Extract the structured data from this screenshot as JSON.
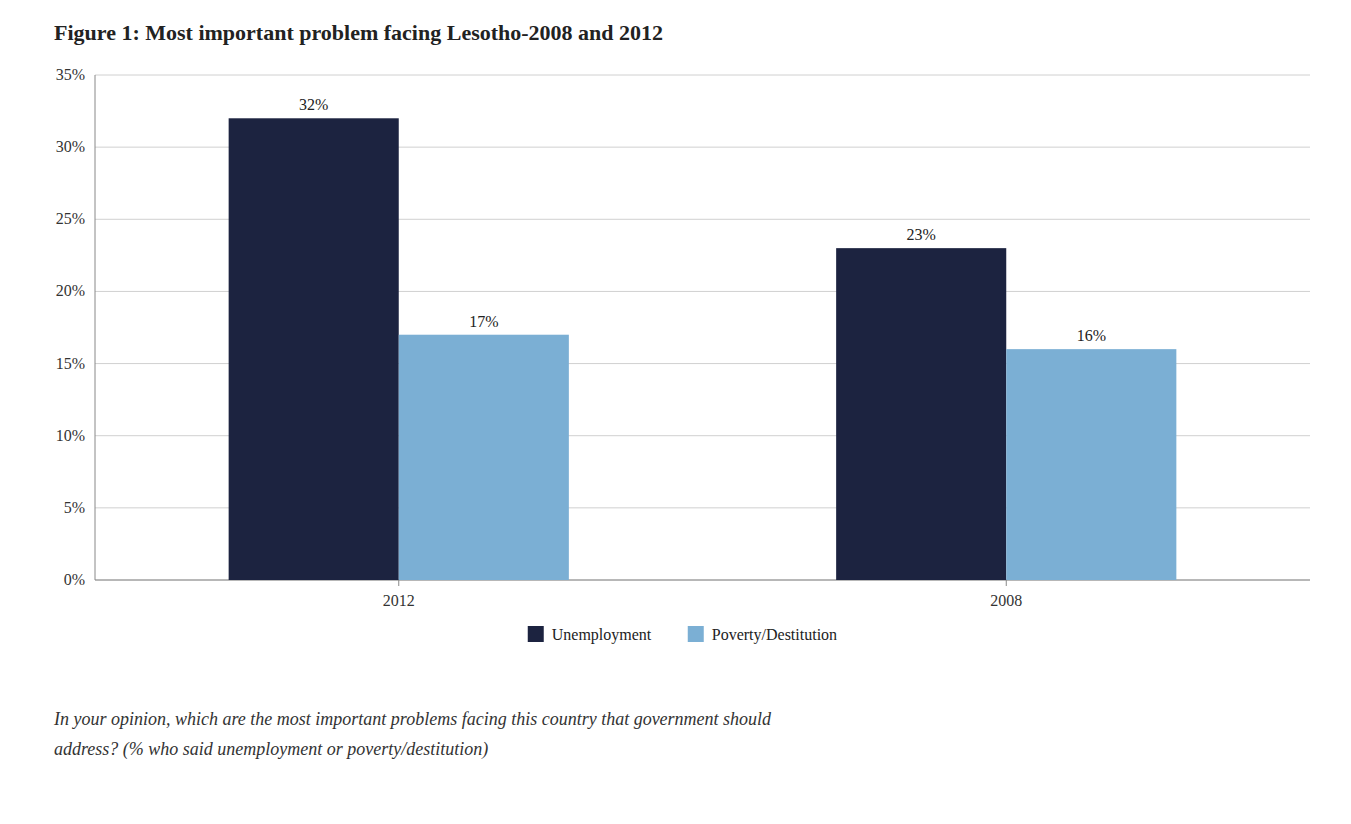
{
  "chart_data": {
    "type": "bar",
    "title": "Figure 1: Most important problem facing Lesotho-2008 and 2012",
    "categories": [
      "2012",
      "2008"
    ],
    "series": [
      {
        "name": "Unemployment",
        "color": "#1c2340",
        "values": [
          32,
          23
        ],
        "value_labels": [
          "32%",
          "23%"
        ]
      },
      {
        "name": "Poverty/Destitution",
        "color": "#7bafd4",
        "values": [
          17,
          16
        ],
        "value_labels": [
          "17%",
          "16%"
        ]
      }
    ],
    "ylim": [
      0,
      35
    ],
    "yticks": [
      {
        "value": 0,
        "label": "0%"
      },
      {
        "value": 5,
        "label": "5%"
      },
      {
        "value": 10,
        "label": "10%"
      },
      {
        "value": 15,
        "label": "15%"
      },
      {
        "value": 20,
        "label": "20%"
      },
      {
        "value": 25,
        "label": "25%"
      },
      {
        "value": 30,
        "label": "30%"
      },
      {
        "value": 35,
        "label": "35%"
      }
    ],
    "grid": true,
    "data_labels": true,
    "legend": "bottom",
    "annotations": [
      "In your opinion, which are the most important problems facing this country that government should",
      "address? (% who said unemployment or poverty/destitution)"
    ]
  }
}
